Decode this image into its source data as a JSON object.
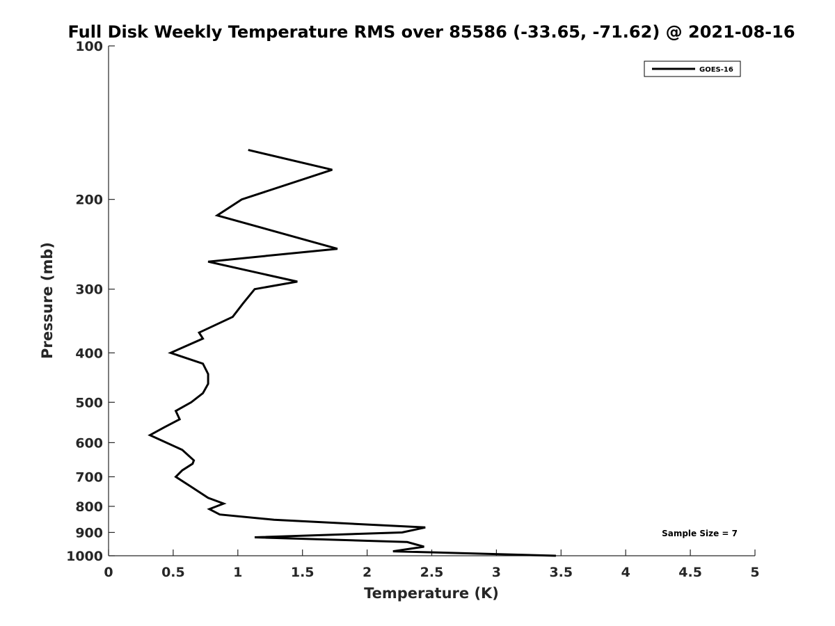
{
  "chart_data": {
    "type": "line",
    "title": "Full Disk Weekly Temperature RMS over 85586 (-33.65, -71.62) @ 2021-08-16",
    "xlabel": "Temperature (K)",
    "ylabel": "Pressure (mb)",
    "xlim": [
      0,
      5
    ],
    "ylim": [
      100,
      1000
    ],
    "y_scale": "log",
    "y_reversed": true,
    "grid": false,
    "x_ticks": [
      "0",
      "0.5",
      "1",
      "1.5",
      "2",
      "2.5",
      "3",
      "3.5",
      "4",
      "4.5",
      "5"
    ],
    "y_ticks": [
      "100",
      "200",
      "300",
      "400",
      "500",
      "600",
      "700",
      "800",
      "900",
      "1000"
    ],
    "legend": {
      "position": "top-right",
      "entries": [
        "GOES-16"
      ]
    },
    "annotation": "Sample Size = 7",
    "series": [
      {
        "name": "GOES-16",
        "color": "#000000",
        "x": [
          1.08,
          1.73,
          1.03,
          0.84,
          1.77,
          0.77,
          1.46,
          1.13,
          1.04,
          0.96,
          0.7,
          0.73,
          0.48,
          0.73,
          0.77,
          0.77,
          0.73,
          0.64,
          0.52,
          0.55,
          0.43,
          0.32,
          0.57,
          0.66,
          0.65,
          0.57,
          0.52,
          0.63,
          0.77,
          0.89,
          0.78,
          0.86,
          1.28,
          2.45,
          2.27,
          1.13,
          2.31,
          2.44,
          2.2,
          3.46
        ],
        "y": [
          160,
          175,
          200,
          215,
          250,
          265,
          290,
          300,
          320,
          340,
          365,
          375,
          400,
          420,
          440,
          460,
          480,
          500,
          520,
          540,
          560,
          580,
          620,
          650,
          660,
          680,
          700,
          730,
          770,
          790,
          810,
          830,
          850,
          880,
          900,
          920,
          940,
          960,
          980,
          1000
        ]
      }
    ]
  }
}
